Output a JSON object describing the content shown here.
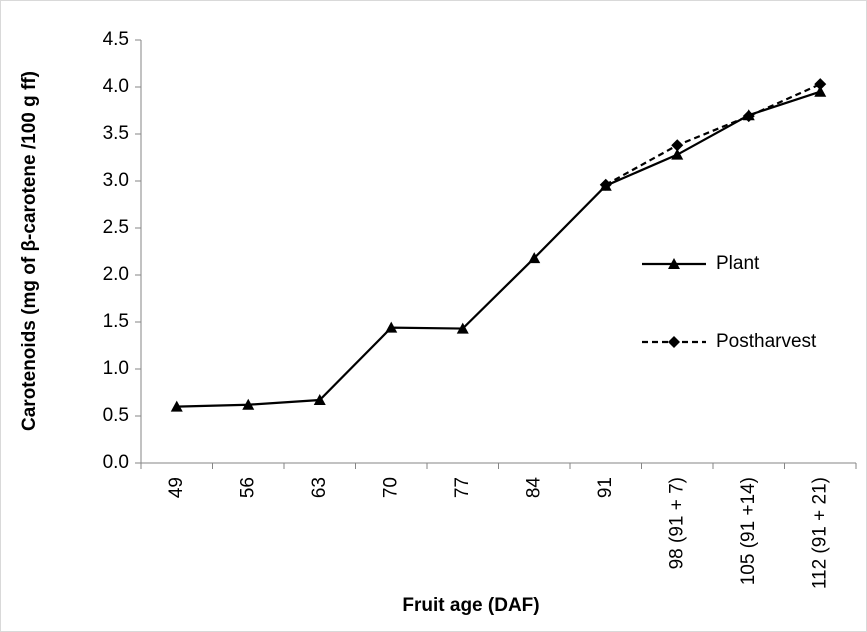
{
  "chart_data": {
    "type": "line",
    "y_label": "Carotenoids (mg of β-carotene /100 g ff)",
    "x_label": "Fruit age (DAF)",
    "categories": [
      "49",
      "56",
      "63",
      "70",
      "77",
      "84",
      "91",
      "98 (91 + 7)",
      "105 (91 +14)",
      "112 (91 + 21)"
    ],
    "series": [
      {
        "name": "Plant",
        "color": "#000000",
        "marker": "triangle",
        "dashed": false,
        "values": [
          0.6,
          0.62,
          0.67,
          1.44,
          1.43,
          2.18,
          2.95,
          3.28,
          3.7,
          3.95
        ]
      },
      {
        "name": "Postharvest",
        "color": "#000000",
        "marker": "diamond",
        "dashed": true,
        "values": [
          null,
          null,
          null,
          null,
          null,
          null,
          2.96,
          3.38,
          3.69,
          4.03
        ]
      }
    ],
    "ylim": [
      0,
      4.5
    ],
    "yticks": [
      {
        "value": 0,
        "label": "0.0"
      },
      0.5,
      {
        "value": 1,
        "label": "1.0"
      },
      1.5,
      {
        "value": 2,
        "label": "2.0"
      },
      2.5,
      {
        "value": 3,
        "label": "3.0"
      },
      3.5,
      {
        "value": 4,
        "label": "4.0"
      },
      4.5
    ],
    "grid": false,
    "legend": "right"
  }
}
